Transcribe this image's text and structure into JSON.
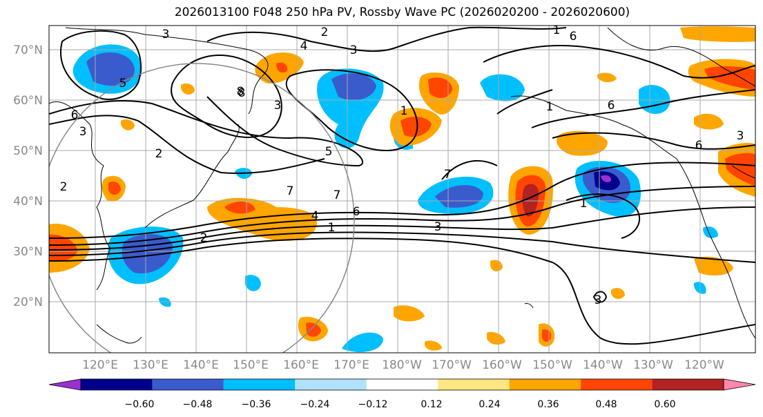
{
  "title": "2026013100 F048 250 hPa PV, Rossby Wave PC (2026020200 - 2026020600)",
  "map": {
    "lat_labels": [
      "70°N",
      "60°N",
      "50°N",
      "40°N",
      "30°N",
      "20°N"
    ],
    "lon_labels": [
      "120°E",
      "130°E",
      "140°E",
      "150°E",
      "160°E",
      "170°E",
      "180°W",
      "170°W",
      "160°W",
      "150°W",
      "140°W",
      "130°W",
      "120°W"
    ],
    "contour_labels": [
      "3",
      "2",
      "4",
      "3",
      "8",
      "1",
      "6",
      "6",
      "3",
      "2",
      "3",
      "8",
      "5",
      "7",
      "1",
      "7",
      "7",
      "6",
      "1",
      "3",
      "4",
      "2",
      "1",
      "6",
      "6",
      "3",
      "3",
      "1",
      "2",
      "5"
    ]
  },
  "colorbar": {
    "ticks": [
      "−0.60",
      "−0.48",
      "−0.36",
      "−0.24",
      "−0.12",
      "0.12",
      "0.24",
      "0.36",
      "0.48",
      "0.60"
    ],
    "colors": [
      "#9b30d0",
      "#00008b",
      "#3a5bcc",
      "#00bfff",
      "#b0e2ff",
      "#ffffff",
      "#ffe680",
      "#ffa500",
      "#ff4500",
      "#b22222",
      "#ff88aa"
    ]
  },
  "colors": {
    "shading_negative": [
      "#00bfff",
      "#3a5bcc",
      "#00008b",
      "#9b30d0"
    ],
    "shading_positive": [
      "#ffa500",
      "#ff4500",
      "#b22222"
    ],
    "grid": "#aaaaaa",
    "contour": "#000000"
  }
}
